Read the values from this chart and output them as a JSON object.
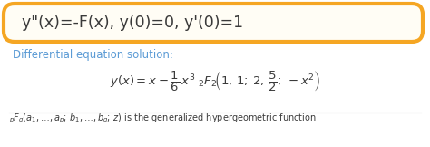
{
  "box_text": "y\"(x)=-F(x), y(0)=0, y'(0)=1",
  "label_text": "Differential equation solution:",
  "main_equation": "$y(x) = x - \\dfrac{1}{6}\\,x^3\\;{}_{2}F_{2}\\!\\left(1,\\,1;\\,2,\\,\\dfrac{5}{2};\\,-x^2\\right)$",
  "footnote": "${}_{p}F_{q}(a_1, \\ldots, a_p;\\, b_1, \\ldots, b_q;\\, z)$ is the generalized hypergeometric function",
  "box_bg": "#fffdf5",
  "box_border": "#f5a623",
  "label_color": "#5b9bd5",
  "text_color": "#3a3a3a",
  "footnote_color": "#3a3a3a",
  "bg_color": "#ffffff",
  "box_text_color": "#3a3a3a"
}
